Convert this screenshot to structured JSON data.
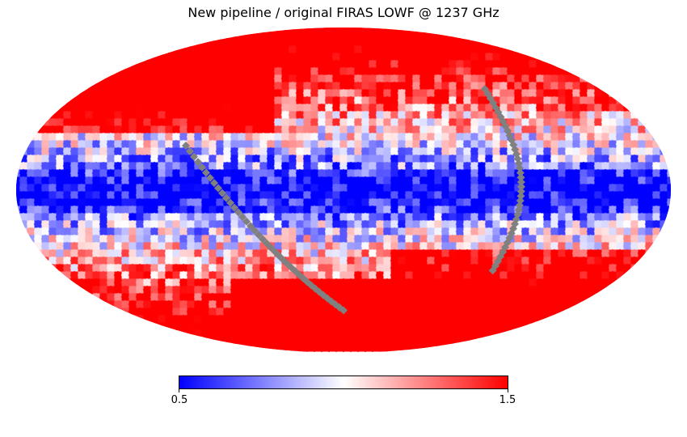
{
  "chart_data": {
    "type": "heatmap",
    "projection": "mollweide",
    "title": "New pipeline / original FIRAS LOWF @ 1237 GHz",
    "colormap": [
      "#0000ff",
      "#ffffff",
      "#ff0000"
    ],
    "missing_color": "#808080",
    "colorbar": {
      "min": 0.5,
      "max": 1.5,
      "ticks": [
        "0.5",
        "1.5"
      ],
      "orientation": "horizontal"
    }
  }
}
